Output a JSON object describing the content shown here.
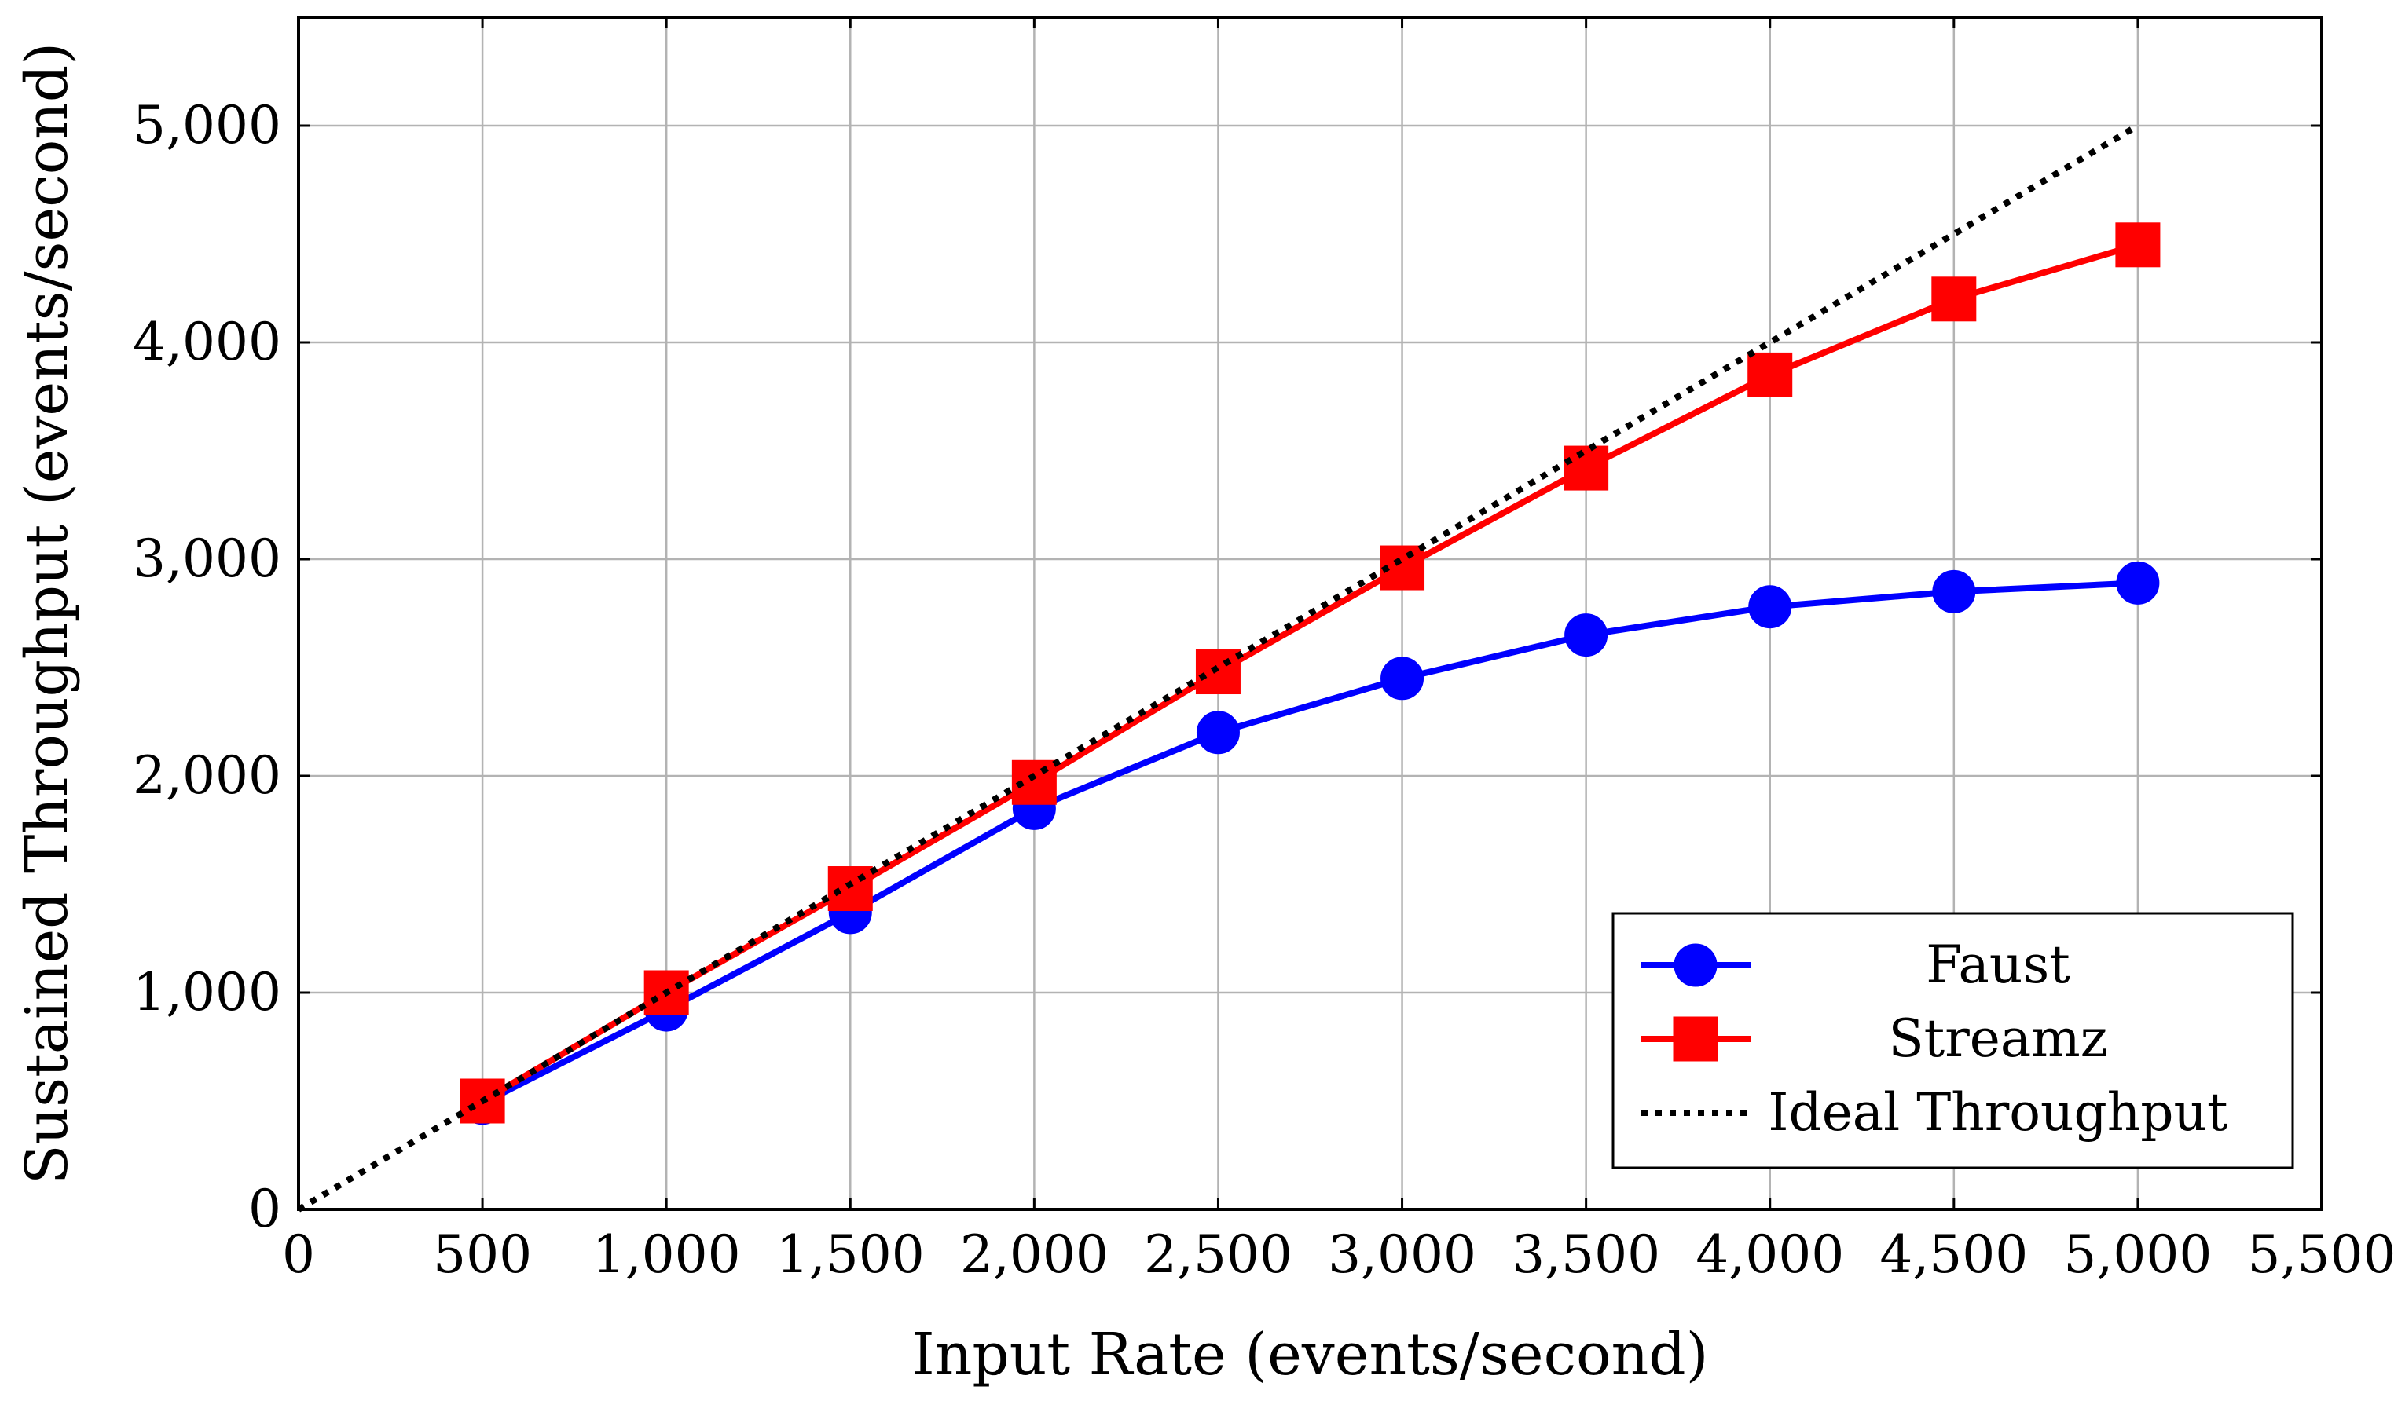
{
  "chart_data": {
    "type": "line",
    "xlabel": "Input Rate (events/second)",
    "ylabel": "Sustained Throughput (events/second)",
    "xlim": [
      0,
      5500
    ],
    "ylim": [
      0,
      5500
    ],
    "x_ticks": [
      0,
      500,
      1000,
      1500,
      2000,
      2500,
      3000,
      3500,
      4000,
      4500,
      5000,
      5500
    ],
    "x_tick_labels": [
      "0",
      "500",
      "1,000",
      "1,500",
      "2,000",
      "2,500",
      "3,000",
      "3,500",
      "4,000",
      "4,500",
      "5,000",
      "5,500"
    ],
    "y_ticks": [
      0,
      1000,
      2000,
      3000,
      4000,
      5000
    ],
    "y_tick_labels": [
      "0",
      "1,000",
      "2,000",
      "3,000",
      "4,000",
      "5,000"
    ],
    "grid": true,
    "legend_position": "bottom-right",
    "x": [
      500,
      1000,
      1500,
      2000,
      2500,
      3000,
      3500,
      4000,
      4500,
      5000
    ],
    "series": [
      {
        "name": "Faust",
        "color": "#0000ff",
        "marker": "circle",
        "line": "solid",
        "x": [
          500,
          1000,
          1500,
          2000,
          2500,
          3000,
          3500,
          4000,
          4500,
          5000
        ],
        "values": [
          490,
          920,
          1370,
          1850,
          2200,
          2450,
          2650,
          2780,
          2850,
          2890
        ]
      },
      {
        "name": "Streamz",
        "color": "#ff0000",
        "marker": "square",
        "line": "solid",
        "x": [
          500,
          1000,
          1500,
          2000,
          2500,
          3000,
          3500,
          4000,
          4500,
          5000
        ],
        "values": [
          500,
          1000,
          1480,
          1970,
          2480,
          2960,
          3420,
          3850,
          4200,
          4450
        ]
      },
      {
        "name": "Ideal Throughput",
        "color": "#000000",
        "marker": "none",
        "line": "dotted",
        "x": [
          0,
          5000
        ],
        "values": [
          0,
          5000
        ]
      }
    ]
  }
}
